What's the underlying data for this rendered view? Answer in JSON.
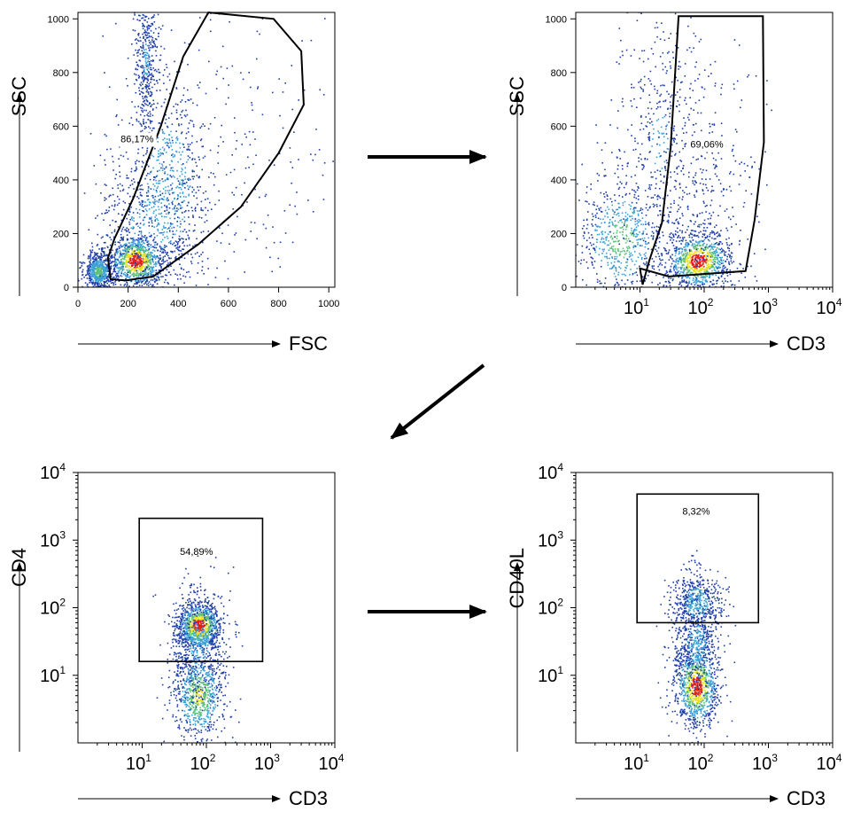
{
  "colors": {
    "density_low": "#1f3fa8",
    "density_mid_low": "#3aa0d8",
    "density_mid": "#5cc07a",
    "density_high": "#e8e020",
    "density_peak": "#e02018",
    "gate": "#000000",
    "arrow": "#000000"
  },
  "arrows": [
    {
      "name": "arrow-panel1-to-panel2",
      "direction": "right"
    },
    {
      "name": "arrow-panel2-to-panel3",
      "direction": "down-left"
    },
    {
      "name": "arrow-panel3-to-panel4",
      "direction": "right"
    }
  ],
  "chart_data": [
    {
      "type": "scatter",
      "subtype": "flow-cytometry-density",
      "xlabel": "FSC",
      "ylabel": "SSC",
      "xscale": "linear",
      "yscale": "linear",
      "xlim": [
        0,
        1024
      ],
      "ylim": [
        0,
        1024
      ],
      "xticks": [
        0,
        200,
        400,
        600,
        800,
        1000
      ],
      "xtick_labels": [
        "0",
        "200",
        "400",
        "600",
        "800",
        "1000"
      ],
      "yticks": [
        0,
        200,
        400,
        600,
        800,
        1000
      ],
      "ytick_labels": [
        "0",
        "200",
        "400",
        "600",
        "800",
        "1000"
      ],
      "gate": {
        "shape": "polygon",
        "label": "86,17%",
        "label_at": [
          236,
          540
        ],
        "vertices": [
          [
            130,
            30
          ],
          [
            120,
            110
          ],
          [
            145,
            180
          ],
          [
            220,
            330
          ],
          [
            330,
            600
          ],
          [
            420,
            860
          ],
          [
            520,
            1024
          ],
          [
            780,
            1000
          ],
          [
            890,
            880
          ],
          [
            900,
            680
          ],
          [
            800,
            500
          ],
          [
            650,
            300
          ],
          [
            480,
            160
          ],
          [
            300,
            40
          ],
          [
            190,
            25
          ]
        ]
      },
      "populations": [
        {
          "x": 230,
          "y": 100,
          "spread_x": 55,
          "spread_y": 50,
          "density": 1.0
        },
        {
          "x": 360,
          "y": 380,
          "spread_x": 80,
          "spread_y": 200,
          "density": 0.45
        },
        {
          "x": 280,
          "y": 220,
          "spread_x": 110,
          "spread_y": 160,
          "density": 0.3
        },
        {
          "x": 270,
          "y": 850,
          "spread_x": 25,
          "spread_y": 150,
          "density": 0.25
        },
        {
          "x": 80,
          "y": 60,
          "spread_x": 30,
          "spread_y": 35,
          "density": 0.55
        },
        {
          "x": 550,
          "y": 500,
          "spread_x": 250,
          "spread_y": 300,
          "density": 0.08
        }
      ]
    },
    {
      "type": "scatter",
      "subtype": "flow-cytometry-density",
      "xlabel": "CD3",
      "ylabel": "SSC",
      "xscale": "log",
      "yscale": "linear",
      "xlim": [
        1,
        10000
      ],
      "ylim": [
        0,
        1024
      ],
      "xticks": [
        10,
        100,
        1000,
        10000
      ],
      "xtick_labels": [
        "10^1",
        "10^2",
        "10^3",
        "10^4"
      ],
      "yticks": [
        0,
        200,
        400,
        600,
        800,
        1000
      ],
      "ytick_labels": [
        "0",
        "200",
        "400",
        "600",
        "800",
        "1000"
      ],
      "gate": {
        "shape": "polygon",
        "label": "69,06%",
        "label_at": [
          110,
          520
        ],
        "vertices": [
          [
            11,
            10
          ],
          [
            14,
            100
          ],
          [
            22,
            240
          ],
          [
            30,
            520
          ],
          [
            40,
            1010
          ],
          [
            820,
            1010
          ],
          [
            850,
            540
          ],
          [
            610,
            250
          ],
          [
            440,
            60
          ],
          [
            28,
            40
          ],
          [
            10,
            70
          ]
        ]
      },
      "populations": [
        {
          "x": 80,
          "y": 100,
          "spread_x": 0.25,
          "spread_y": 55,
          "density": 1.0
        },
        {
          "x": 5,
          "y": 180,
          "spread_x": 0.35,
          "spread_y": 120,
          "density": 0.55
        },
        {
          "x": 20,
          "y": 550,
          "spread_x": 0.35,
          "spread_y": 250,
          "density": 0.25
        },
        {
          "x": 100,
          "y": 350,
          "spread_x": 0.45,
          "spread_y": 250,
          "density": 0.12
        }
      ]
    },
    {
      "type": "scatter",
      "subtype": "flow-cytometry-density",
      "xlabel": "CD3",
      "ylabel": "CD4",
      "xscale": "log",
      "yscale": "log",
      "xlim": [
        1,
        10000
      ],
      "ylim": [
        1,
        10000
      ],
      "xticks": [
        10,
        100,
        1000,
        10000
      ],
      "xtick_labels": [
        "10^1",
        "10^2",
        "10^3",
        "10^4"
      ],
      "yticks": [
        10,
        100,
        1000,
        10000
      ],
      "ytick_labels": [
        "10^1",
        "10^2",
        "10^3",
        "10^4"
      ],
      "gate": {
        "shape": "rectangle",
        "label": "54,89%",
        "label_at": [
          70,
          600
        ],
        "x_range": [
          9,
          750
        ],
        "y_range": [
          16,
          2100
        ]
      },
      "populations": [
        {
          "x": 75,
          "y": 55,
          "spread_x": 0.18,
          "spread_y": 0.18,
          "density": 1.0
        },
        {
          "x": 75,
          "y": 5,
          "spread_x": 0.2,
          "spread_y": 0.35,
          "density": 0.7
        },
        {
          "x": 75,
          "y": 30,
          "spread_x": 0.22,
          "spread_y": 0.45,
          "density": 0.3
        }
      ]
    },
    {
      "type": "scatter",
      "subtype": "flow-cytometry-density",
      "xlabel": "CD3",
      "ylabel": "CD40L",
      "xscale": "log",
      "yscale": "log",
      "xlim": [
        1,
        10000
      ],
      "ylim": [
        1,
        10000
      ],
      "xticks": [
        10,
        100,
        1000,
        10000
      ],
      "xtick_labels": [
        "10^1",
        "10^2",
        "10^3",
        "10^4"
      ],
      "yticks": [
        10,
        100,
        1000,
        10000
      ],
      "ytick_labels": [
        "10^1",
        "10^2",
        "10^3",
        "10^4"
      ],
      "gate": {
        "shape": "rectangle",
        "label": "8,32%",
        "label_at": [
          75,
          2400
        ],
        "x_range": [
          9,
          700
        ],
        "y_range": [
          60,
          4800
        ]
      },
      "populations": [
        {
          "x": 75,
          "y": 7,
          "spread_x": 0.17,
          "spread_y": 0.3,
          "density": 1.0
        },
        {
          "x": 75,
          "y": 120,
          "spread_x": 0.2,
          "spread_y": 0.25,
          "density": 0.35
        },
        {
          "x": 75,
          "y": 30,
          "spread_x": 0.2,
          "spread_y": 0.4,
          "density": 0.3
        }
      ]
    }
  ]
}
